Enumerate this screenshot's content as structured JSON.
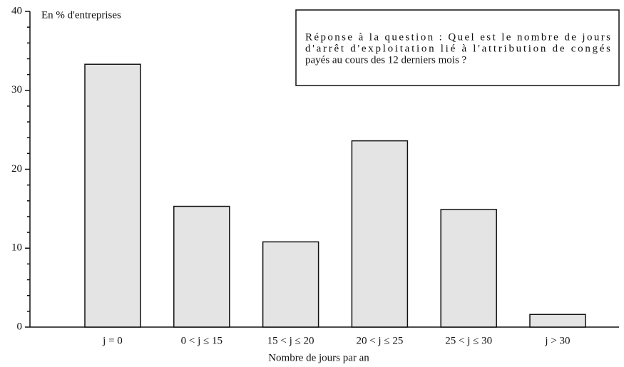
{
  "chart_data": {
    "type": "bar",
    "y_label": "En % d'entreprises",
    "x_label": "Nombre de jours par an",
    "annotation": [
      "Réponse à la question : Quel est le nombre de jours",
      "d'arrêt d'exploitation lié à l'attribution de congés",
      "payés au cours des 12 derniers mois ?"
    ],
    "categories": [
      "j = 0",
      "0 < j ≤ 15",
      "15 < j ≤ 20",
      "20 < j ≤ 25",
      "25 < j ≤ 30",
      "j > 30"
    ],
    "values": [
      33.3,
      15.3,
      10.8,
      23.6,
      14.9,
      1.6
    ],
    "color": "#e4e4e4",
    "ylim": [
      0,
      40
    ],
    "yticks": [
      0,
      10,
      20,
      30,
      40
    ],
    "minor_yticks": [
      2,
      4,
      6,
      8,
      12,
      14,
      16,
      18,
      22,
      24,
      26,
      28,
      32,
      34,
      36,
      38
    ],
    "grid": false
  }
}
